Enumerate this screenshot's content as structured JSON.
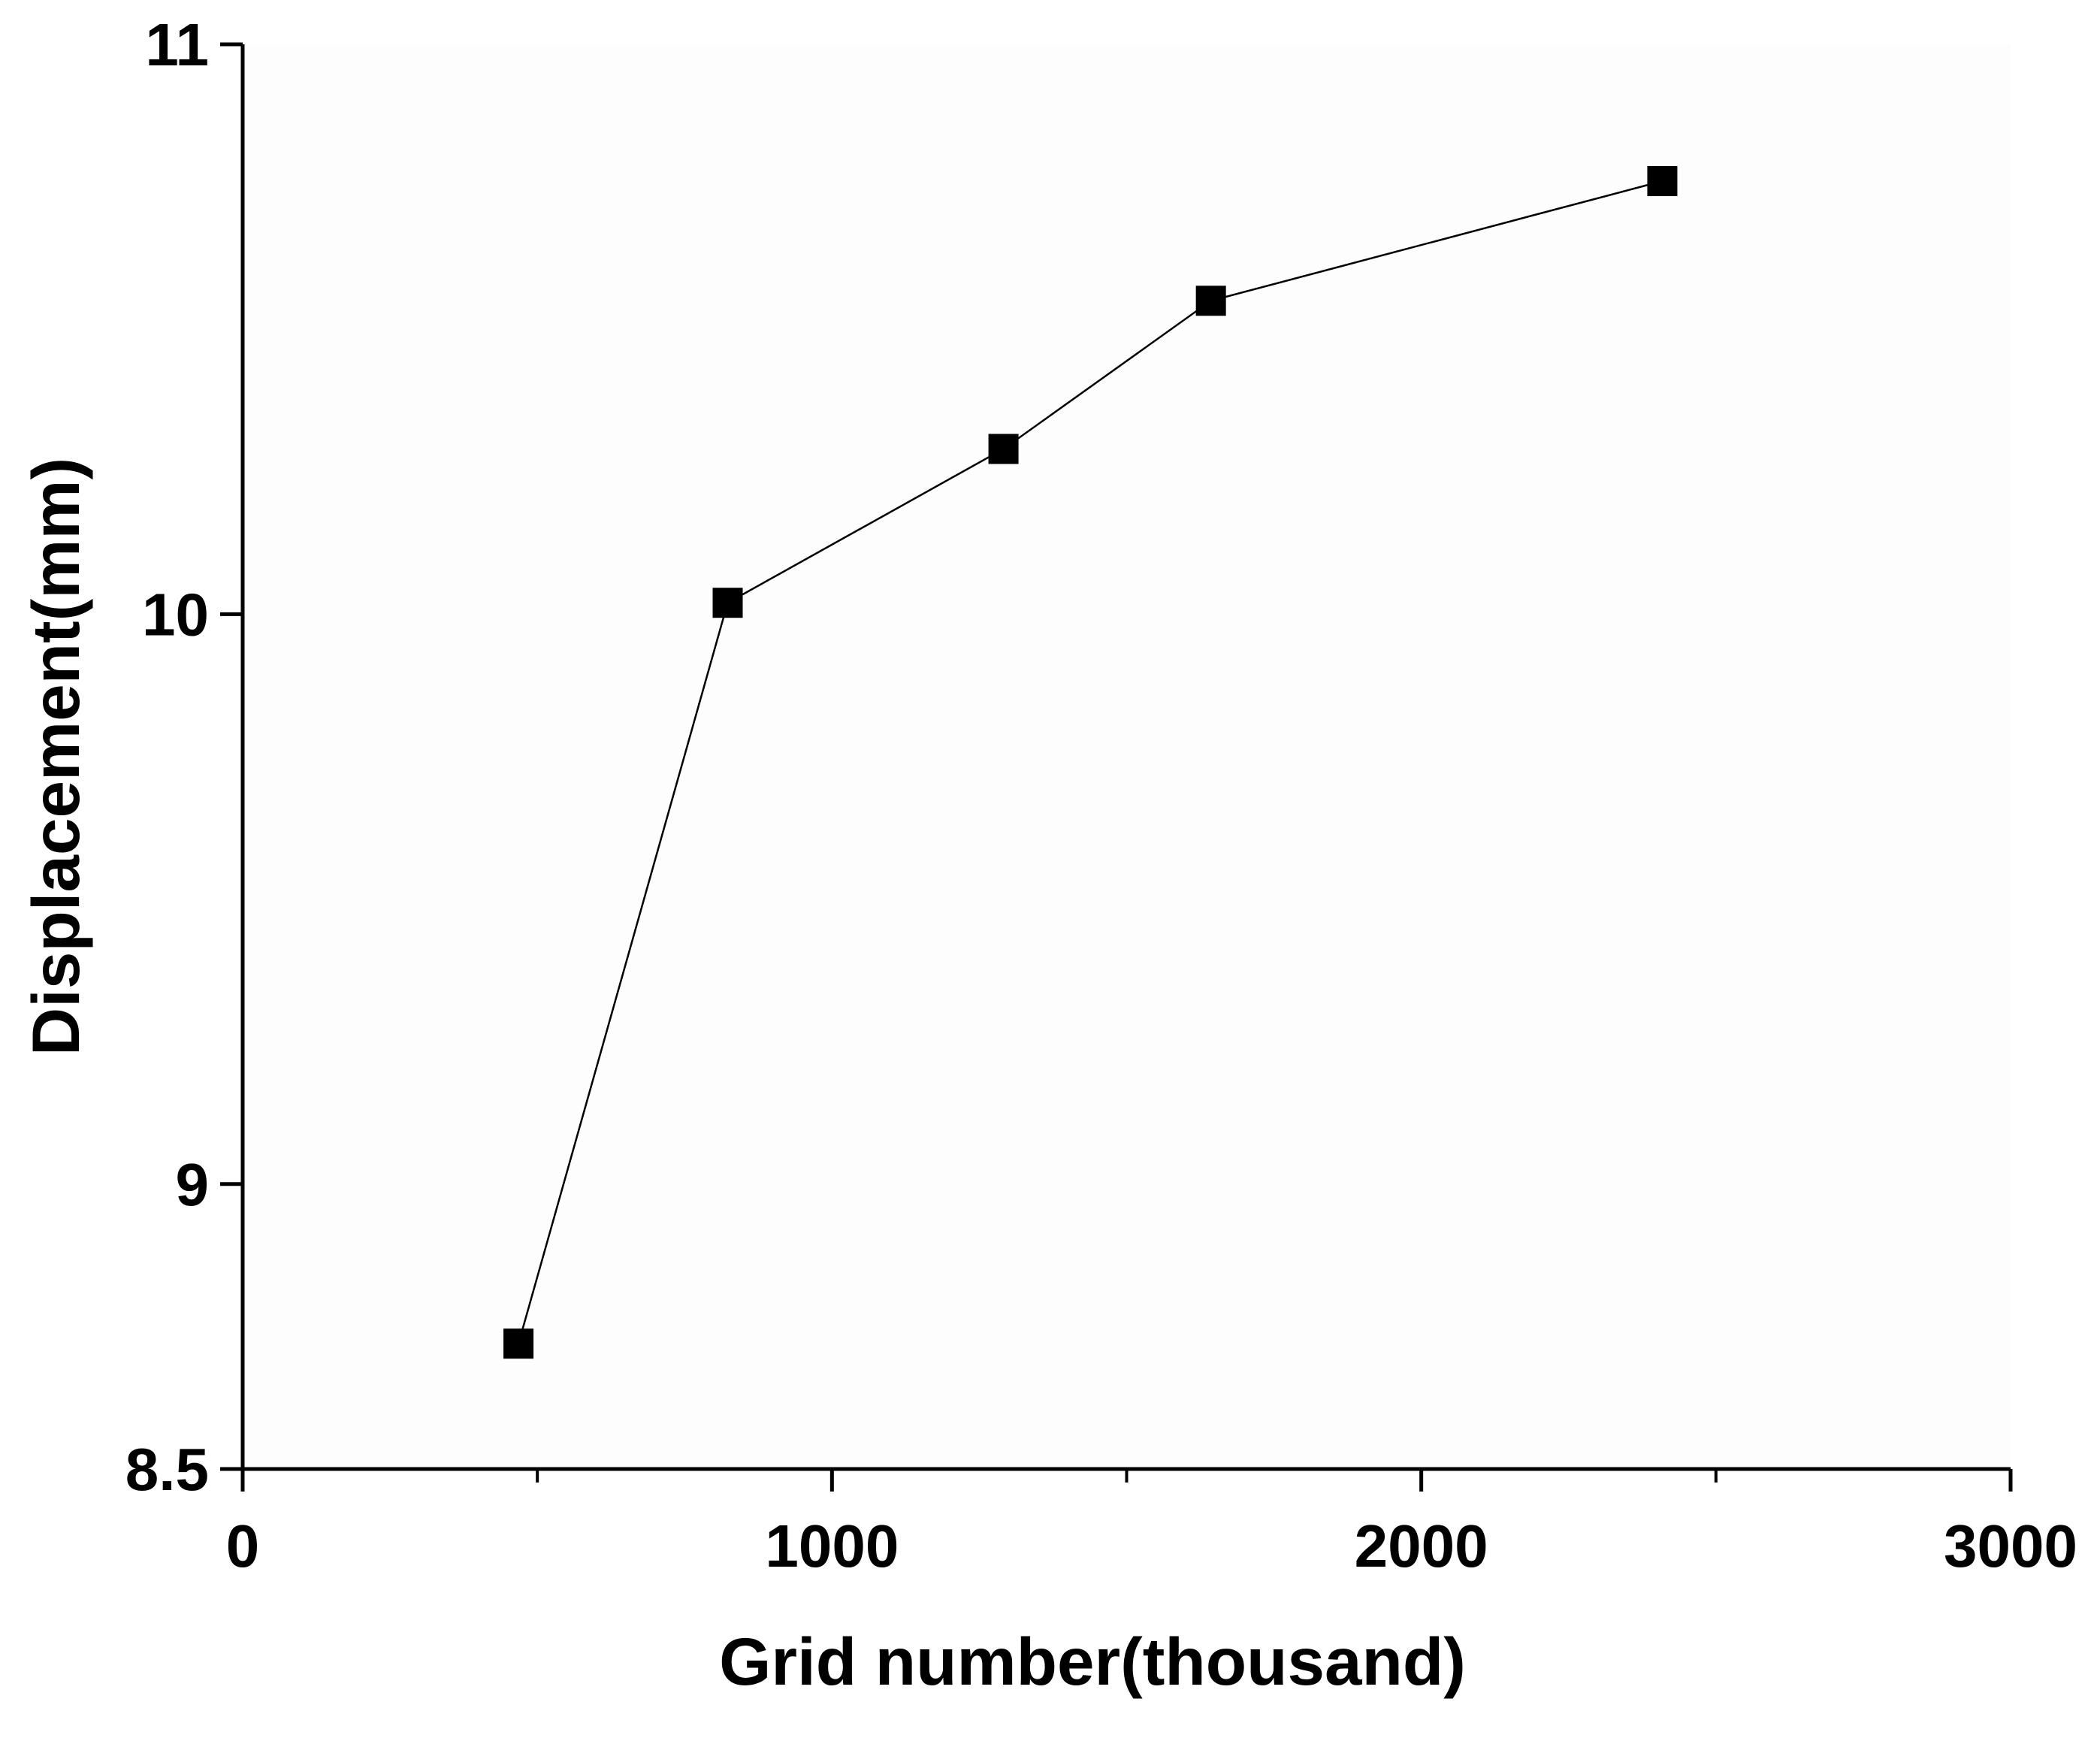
{
  "chart_data": {
    "type": "line",
    "x_label": "Grid number(thousand)",
    "y_label": "Displacement(mm)",
    "x": [
      468,
      823,
      1291,
      1643,
      2409
    ],
    "series": [
      {
        "color": "#000000",
        "values": [
          8.72,
          10.02,
          10.29,
          10.55,
          10.76
        ]
      }
    ],
    "marker": "square",
    "xlim": [
      0,
      3000
    ],
    "xticks": [
      0,
      1000,
      2000,
      3000
    ],
    "xminor": [
      500,
      1500,
      2500
    ],
    "ylim": [
      8.5,
      11
    ],
    "yticks": [
      8.5,
      9,
      10,
      11
    ],
    "grid": false
  }
}
